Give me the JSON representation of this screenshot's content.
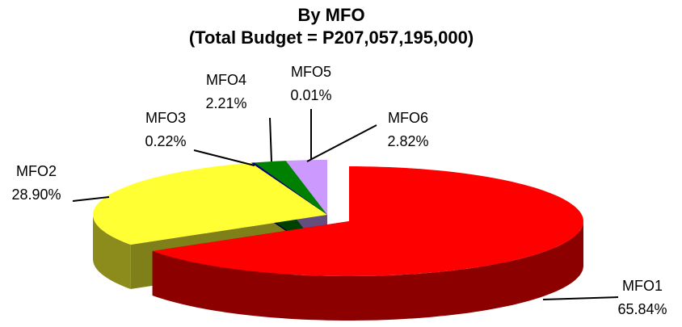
{
  "chart_data": {
    "type": "pie3d",
    "title": "By MFO",
    "subtitle": "(Total Budget = P207,057,195,000)",
    "categories": [
      "MFO1",
      "MFO2",
      "MFO3",
      "MFO4",
      "MFO5",
      "MFO6"
    ],
    "values": [
      65.84,
      28.9,
      0.22,
      2.21,
      0.01,
      2.82
    ],
    "value_labels": [
      "65.84%",
      "28.90%",
      "0.22%",
      "2.21%",
      "0.01%",
      "2.82%"
    ],
    "colors": [
      "#ff0000",
      "#ffff33",
      "#000080",
      "#008000",
      "#99ccff",
      "#cc99ff"
    ]
  }
}
